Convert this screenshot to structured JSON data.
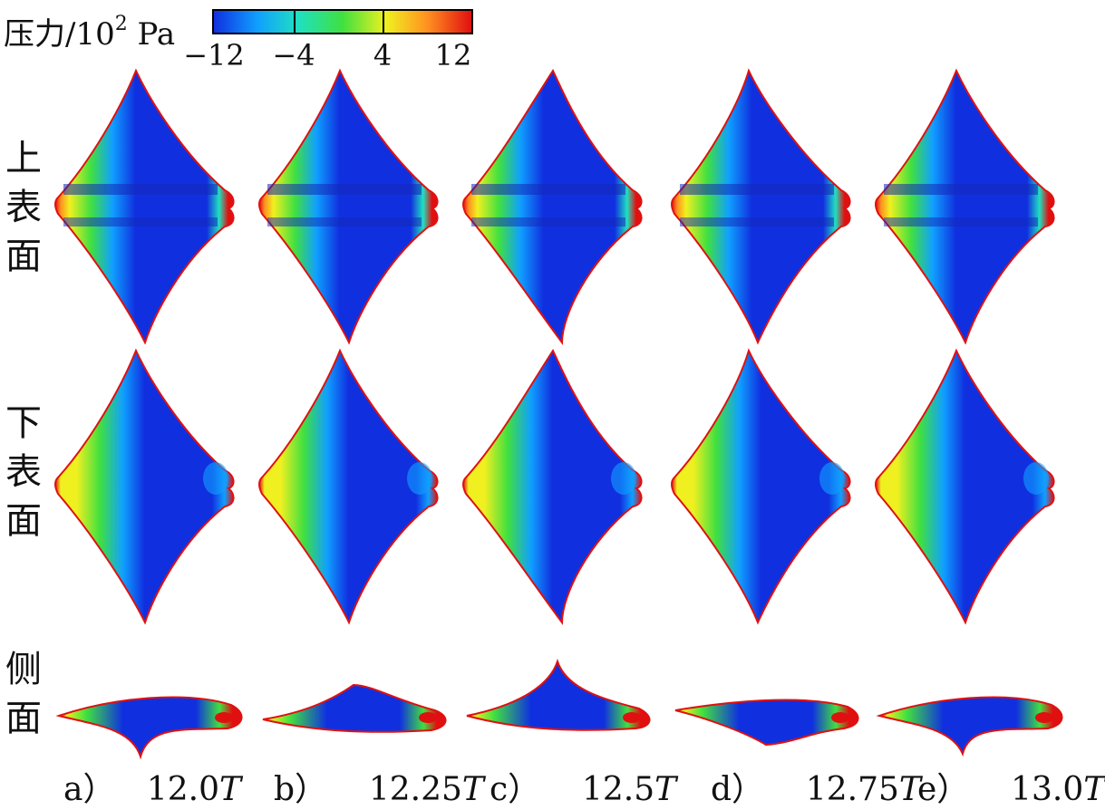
{
  "legend": {
    "title": "压力/10",
    "title_sup": "2",
    "title_unit": "Pa",
    "ticks": [
      "−12",
      "−4",
      "4",
      "12"
    ],
    "colors": [
      "#1030e0",
      "#10a0ff",
      "#20e0c0",
      "#40e040",
      "#f0f020",
      "#ff9020",
      "#e01010"
    ]
  },
  "rows": {
    "upper": [
      "上",
      "表",
      "面"
    ],
    "lower": [
      "下",
      "表",
      "面"
    ],
    "side": [
      "侧",
      "面"
    ]
  },
  "captions": [
    {
      "letter": "a）",
      "value": "12.0",
      "unit": "T"
    },
    {
      "letter": "b）",
      "value": "12.25",
      "unit": "T"
    },
    {
      "letter": "c）",
      "value": "12.5",
      "unit": "T"
    },
    {
      "letter": "d）",
      "value": "12.75",
      "unit": "T"
    },
    {
      "letter": "e）",
      "value": "13.0",
      "unit": "T"
    }
  ]
}
